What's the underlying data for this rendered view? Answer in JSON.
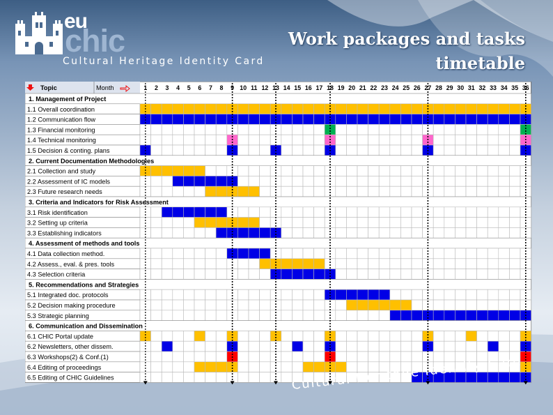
{
  "slide": {
    "title_line1": "Work packages and tasks",
    "title_line2": "timetable",
    "logo_eu": "eu",
    "logo_chic": "chic",
    "tagline": "Cultural  Heritage  Identity  Card",
    "bottom_tagline": "Cultural Heritage Identity Card"
  },
  "colors": {
    "yellow": "#ffc000",
    "blue": "#0000e6",
    "green": "#00b050",
    "pink": "#ff66cc",
    "red": "#ff0000",
    "empty": "#ffffff"
  },
  "table": {
    "topic_header": "Topic",
    "month_header": "Month",
    "header_arrows": [
      "down-arrow-icon",
      "right-arrow-icon"
    ],
    "months": [
      1,
      2,
      3,
      4,
      5,
      6,
      7,
      8,
      9,
      10,
      11,
      12,
      13,
      14,
      15,
      16,
      17,
      18,
      19,
      20,
      21,
      22,
      23,
      24,
      25,
      26,
      27,
      28,
      29,
      30,
      31,
      32,
      33,
      34,
      35,
      36
    ],
    "milestone_months": [
      9,
      13,
      18,
      27,
      36
    ],
    "rows": [
      {
        "label": "1. Management of Project",
        "section": true,
        "cells": []
      },
      {
        "label": "1.1 Overall coordination",
        "section": false,
        "cells": [
          "Y",
          "Y",
          "Y",
          "Y",
          "Y",
          "Y",
          "Y",
          "Y",
          "Y",
          "Y",
          "Y",
          "Y",
          "Y",
          "Y",
          "Y",
          "Y",
          "Y",
          "Y",
          "Y",
          "Y",
          "Y",
          "Y",
          "Y",
          "Y",
          "Y",
          "Y",
          "Y",
          "Y",
          "Y",
          "Y",
          "Y",
          "Y",
          "Y",
          "Y",
          "Y",
          "Y"
        ]
      },
      {
        "label": "1.2  Communication flow",
        "section": false,
        "cells": [
          "B",
          "B",
          "B",
          "B",
          "B",
          "B",
          "B",
          "B",
          "B",
          "B",
          "B",
          "B",
          "B",
          "B",
          "B",
          "B",
          "B",
          "B",
          "B",
          "B",
          "B",
          "B",
          "B",
          "B",
          "B",
          "B",
          "B",
          "B",
          "B",
          "B",
          "B",
          "B",
          "B",
          "B",
          "B",
          "B"
        ]
      },
      {
        "label": "1.3 Financial monitoring",
        "section": false,
        "cells": [
          "",
          "",
          "",
          "",
          "",
          "",
          "",
          "",
          "",
          "",
          "",
          "",
          "",
          "",
          "",
          "",
          "",
          "G",
          "",
          "",
          "",
          "",
          "",
          "",
          "",
          "",
          "",
          "",
          "",
          "",
          "",
          "",
          "",
          "",
          "",
          "G"
        ]
      },
      {
        "label": "1.4 Technical monitoring",
        "section": false,
        "cells": [
          "",
          "",
          "",
          "",
          "",
          "",
          "",
          "",
          "P",
          "",
          "",
          "",
          "",
          "",
          "",
          "",
          "",
          "P",
          "",
          "",
          "",
          "",
          "",
          "",
          "",
          "",
          "P",
          "",
          "",
          "",
          "",
          "",
          "",
          "",
          "",
          "P"
        ]
      },
      {
        "label": "1.5 Decision & conting. plans",
        "section": false,
        "cells": [
          "B",
          "",
          "",
          "",
          "",
          "",
          "",
          "",
          "B",
          "",
          "",
          "",
          "B",
          "",
          "",
          "",
          "",
          "B",
          "",
          "",
          "",
          "",
          "",
          "",
          "",
          "",
          "B",
          "",
          "",
          "",
          "",
          "",
          "",
          "",
          "",
          "B"
        ]
      },
      {
        "label": "2. Current Documentation Methodologies",
        "section": true,
        "cells": []
      },
      {
        "label": "2.1 Collection and study",
        "section": false,
        "cells": [
          "Y",
          "Y",
          "Y",
          "Y",
          "Y",
          "Y",
          "",
          "",
          "",
          "",
          "",
          "",
          "",
          "",
          "",
          "",
          "",
          "",
          "",
          "",
          "",
          "",
          "",
          "",
          "",
          "",
          "",
          "",
          "",
          "",
          "",
          "",
          "",
          "",
          "",
          ""
        ]
      },
      {
        "label": "2.2 Assessment of IC models",
        "section": false,
        "cells": [
          "",
          "",
          "",
          "B",
          "B",
          "B",
          "B",
          "B",
          "B",
          "",
          "",
          "",
          "",
          "",
          "",
          "",
          "",
          "",
          "",
          "",
          "",
          "",
          "",
          "",
          "",
          "",
          "",
          "",
          "",
          "",
          "",
          "",
          "",
          "",
          "",
          ""
        ]
      },
      {
        "label": "2.3 Future research needs",
        "section": false,
        "cells": [
          "",
          "",
          "",
          "",
          "",
          "",
          "Y",
          "Y",
          "Y",
          "Y",
          "Y",
          "",
          "",
          "",
          "",
          "",
          "",
          "",
          "",
          "",
          "",
          "",
          "",
          "",
          "",
          "",
          "",
          "",
          "",
          "",
          "",
          "",
          "",
          "",
          "",
          ""
        ]
      },
      {
        "label": "3. Criteria and Indicators for Risk Assessment",
        "section": true,
        "cells": []
      },
      {
        "label": "3.1 Risk identification",
        "section": false,
        "cells": [
          "",
          "",
          "B",
          "B",
          "B",
          "B",
          "B",
          "B",
          "",
          "",
          "",
          "",
          "",
          "",
          "",
          "",
          "",
          "",
          "",
          "",
          "",
          "",
          "",
          "",
          "",
          "",
          "",
          "",
          "",
          "",
          "",
          "",
          "",
          "",
          "",
          ""
        ]
      },
      {
        "label": "3.2 Setting up criteria",
        "section": false,
        "cells": [
          "",
          "",
          "",
          "",
          "",
          "Y",
          "Y",
          "Y",
          "Y",
          "Y",
          "Y",
          "",
          "",
          "",
          "",
          "",
          "",
          "",
          "",
          "",
          "",
          "",
          "",
          "",
          "",
          "",
          "",
          "",
          "",
          "",
          "",
          "",
          "",
          "",
          "",
          ""
        ]
      },
      {
        "label": "3.3 Establishing indicators",
        "section": false,
        "cells": [
          "",
          "",
          "",
          "",
          "",
          "",
          "",
          "B",
          "B",
          "B",
          "B",
          "B",
          "B",
          "",
          "",
          "",
          "",
          "",
          "",
          "",
          "",
          "",
          "",
          "",
          "",
          "",
          "",
          "",
          "",
          "",
          "",
          "",
          "",
          "",
          "",
          ""
        ]
      },
      {
        "label": "4. Assessment of methods and tools",
        "section": true,
        "cells": []
      },
      {
        "label": "4.1 Data collection method.",
        "section": false,
        "cells": [
          "",
          "",
          "",
          "",
          "",
          "",
          "",
          "",
          "B",
          "B",
          "B",
          "B",
          "",
          "",
          "",
          "",
          "",
          "",
          "",
          "",
          "",
          "",
          "",
          "",
          "",
          "",
          "",
          "",
          "",
          "",
          "",
          "",
          "",
          "",
          "",
          ""
        ]
      },
      {
        "label": "4.2 Assess., eval. & pres. tools",
        "section": false,
        "cells": [
          "",
          "",
          "",
          "",
          "",
          "",
          "",
          "",
          "",
          "",
          "",
          "Y",
          "Y",
          "Y",
          "Y",
          "Y",
          "Y",
          "",
          "",
          "",
          "",
          "",
          "",
          "",
          "",
          "",
          "",
          "",
          "",
          "",
          "",
          "",
          "",
          "",
          "",
          ""
        ]
      },
      {
        "label": "4.3 Selection criteria",
        "section": false,
        "cells": [
          "",
          "",
          "",
          "",
          "",
          "",
          "",
          "",
          "",
          "",
          "",
          "",
          "B",
          "B",
          "B",
          "B",
          "B",
          "B",
          "",
          "",
          "",
          "",
          "",
          "",
          "",
          "",
          "",
          "",
          "",
          "",
          "",
          "",
          "",
          "",
          "",
          ""
        ]
      },
      {
        "label": "5. Recommendations and Strategies",
        "section": true,
        "cells": []
      },
      {
        "label": "5.1 Integrated doc. protocols",
        "section": false,
        "cells": [
          "",
          "",
          "",
          "",
          "",
          "",
          "",
          "",
          "",
          "",
          "",
          "",
          "",
          "",
          "",
          "",
          "",
          "B",
          "B",
          "B",
          "B",
          "B",
          "B",
          "",
          "",
          "",
          "",
          "",
          "",
          "",
          "",
          "",
          "",
          "",
          "",
          ""
        ]
      },
      {
        "label": "5.2 Decision making procedure",
        "section": false,
        "cells": [
          "",
          "",
          "",
          "",
          "",
          "",
          "",
          "",
          "",
          "",
          "",
          "",
          "",
          "",
          "",
          "",
          "",
          "",
          "",
          "Y",
          "Y",
          "Y",
          "Y",
          "Y",
          "Y",
          "",
          "",
          "",
          "",
          "",
          "",
          "",
          "",
          "",
          "",
          ""
        ]
      },
      {
        "label": "5.3 Strategic planning",
        "section": false,
        "cells": [
          "",
          "",
          "",
          "",
          "",
          "",
          "",
          "",
          "",
          "",
          "",
          "",
          "",
          "",
          "",
          "",
          "",
          "",
          "",
          "",
          "",
          "",
          "",
          "B",
          "B",
          "B",
          "B",
          "B",
          "B",
          "B",
          "B",
          "B",
          "B",
          "B",
          "B",
          "B"
        ]
      },
      {
        "label": "6. Communication and Dissemination",
        "section": true,
        "cells": []
      },
      {
        "label": "6.1 CHIC Portal update",
        "section": false,
        "cells": [
          "Y",
          "",
          "",
          "",
          "",
          "Y",
          "",
          "",
          "Y",
          "",
          "",
          "",
          "Y",
          "",
          "",
          "",
          "",
          "Y",
          "",
          "",
          "",
          "",
          "",
          "",
          "",
          "",
          "Y",
          "",
          "",
          "",
          "Y",
          "",
          "",
          "",
          "",
          "Y"
        ]
      },
      {
        "label": "6.2 Newsletters, other dissem.",
        "section": false,
        "cells": [
          "",
          "",
          "B",
          "",
          "",
          "",
          "",
          "",
          "B",
          "",
          "",
          "",
          "",
          "",
          "B",
          "",
          "",
          "B",
          "",
          "",
          "",
          "",
          "",
          "",
          "",
          "",
          "B",
          "",
          "",
          "",
          "",
          "",
          "B",
          "",
          "",
          "B"
        ]
      },
      {
        "label": "6.3 Workshops(2) & Conf.(1)",
        "section": false,
        "cells": [
          "",
          "",
          "",
          "",
          "",
          "",
          "",
          "",
          "R",
          "",
          "",
          "",
          "",
          "",
          "",
          "",
          "",
          "R",
          "",
          "",
          "",
          "",
          "",
          "",
          "",
          "",
          "",
          "",
          "",
          "",
          "",
          "",
          "",
          "",
          "",
          "R"
        ]
      },
      {
        "label": "6.4 Editing of proceedings",
        "section": false,
        "cells": [
          "",
          "",
          "",
          "",
          "",
          "Y",
          "Y",
          "Y",
          "Y",
          "",
          "",
          "",
          "",
          "",
          "",
          "Y",
          "Y",
          "Y",
          "Y",
          "",
          "",
          "",
          "",
          "",
          "",
          "",
          "",
          "",
          "",
          "",
          "",
          "",
          "",
          "",
          "",
          "Y"
        ]
      },
      {
        "label": "6.5 Editing of CHIC Guidelines",
        "section": false,
        "cells": [
          "",
          "",
          "",
          "",
          "",
          "",
          "",
          "",
          "",
          "",
          "",
          "",
          "",
          "",
          "",
          "",
          "",
          "",
          "",
          "",
          "",
          "",
          "",
          "",
          "",
          "B",
          "B",
          "B",
          "B",
          "B",
          "B",
          "B",
          "B",
          "B",
          "B",
          "B"
        ]
      }
    ]
  }
}
